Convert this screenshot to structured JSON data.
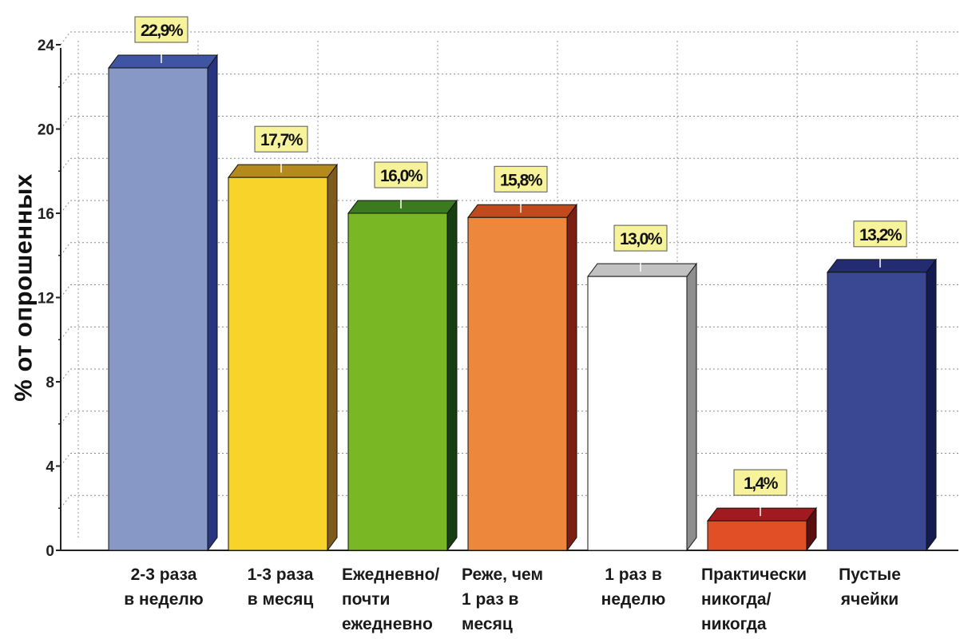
{
  "chart_data": {
    "type": "bar",
    "ylabel": "% от опрошенных",
    "categories": [
      "2-3 раза\nв неделю",
      "1-3 раза\nв месяц",
      "Ежедневно/\nпочти\nежедневно",
      "Реже, чем\n1 раз в\nмесяц",
      "1 раз в\nнеделю",
      "Практически\nникогда/\nникогда",
      "Пустые\nячейки"
    ],
    "values": [
      22.9,
      17.7,
      16.0,
      15.8,
      13.0,
      1.4,
      13.2
    ],
    "data_labels": [
      "22,9%",
      "17,7%",
      "16,0%",
      "15,8%",
      "13,0%",
      "1,4%",
      "13,2%"
    ],
    "ylim": [
      0,
      24
    ],
    "yticks": [
      "0",
      "4",
      "8",
      "12",
      "16",
      "20",
      "24"
    ],
    "grid": true,
    "colors": [
      {
        "face": "#8797c6",
        "side": "#273580",
        "top": "#3f54a3"
      },
      {
        "face": "#f8d32a",
        "side": "#7e5a1c",
        "top": "#b48a1c"
      },
      {
        "face": "#7ab724",
        "side": "#173f10",
        "top": "#3b7a1f"
      },
      {
        "face": "#ed873b",
        "side": "#7c1e12",
        "top": "#c04a1c"
      },
      {
        "face": "#ffffff",
        "side": "#8e8e8e",
        "top": "#c2c2c2"
      },
      {
        "face": "#e04f25",
        "side": "#5b0f0f",
        "top": "#a01a1f"
      },
      {
        "face": "#3a4894",
        "side": "#131b4f",
        "top": "#232c70"
      }
    ],
    "label_box_color": "#f7f39a"
  }
}
